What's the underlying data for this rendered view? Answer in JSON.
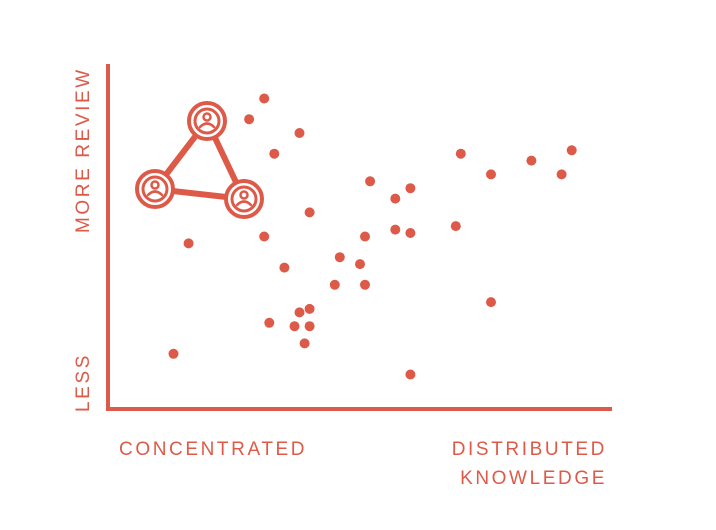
{
  "colors": {
    "accent": "#de5a48",
    "background": "#ffffff"
  },
  "icon": "network-triangle-people-icon",
  "chart_data": {
    "type": "scatter",
    "xlabel_left": "CONCENTRATED",
    "xlabel_right_line1": "DISTRIBUTED",
    "xlabel_right_line2": "KNOWLEDGE",
    "ylabel_top": "MORE REVIEW",
    "ylabel_bottom": "LESS",
    "xlim": [
      0,
      100
    ],
    "ylim": [
      0,
      100
    ],
    "grid": false,
    "points": [
      {
        "x": 13,
        "y": 16
      },
      {
        "x": 16,
        "y": 48
      },
      {
        "x": 28,
        "y": 84
      },
      {
        "x": 31,
        "y": 90
      },
      {
        "x": 33,
        "y": 74
      },
      {
        "x": 31,
        "y": 50
      },
      {
        "x": 35,
        "y": 41
      },
      {
        "x": 32,
        "y": 25
      },
      {
        "x": 38,
        "y": 80
      },
      {
        "x": 40,
        "y": 57
      },
      {
        "x": 38,
        "y": 28
      },
      {
        "x": 40,
        "y": 24
      },
      {
        "x": 39,
        "y": 19
      },
      {
        "x": 40,
        "y": 29
      },
      {
        "x": 37,
        "y": 24
      },
      {
        "x": 46,
        "y": 44
      },
      {
        "x": 45,
        "y": 36
      },
      {
        "x": 51,
        "y": 50
      },
      {
        "x": 50,
        "y": 42
      },
      {
        "x": 51,
        "y": 36
      },
      {
        "x": 52,
        "y": 66
      },
      {
        "x": 57,
        "y": 61
      },
      {
        "x": 60,
        "y": 64
      },
      {
        "x": 57,
        "y": 52
      },
      {
        "x": 60,
        "y": 51
      },
      {
        "x": 60,
        "y": 10
      },
      {
        "x": 69,
        "y": 53
      },
      {
        "x": 70,
        "y": 74
      },
      {
        "x": 76,
        "y": 68
      },
      {
        "x": 76,
        "y": 31
      },
      {
        "x": 84,
        "y": 72
      },
      {
        "x": 90,
        "y": 68
      },
      {
        "x": 92,
        "y": 75
      }
    ]
  }
}
